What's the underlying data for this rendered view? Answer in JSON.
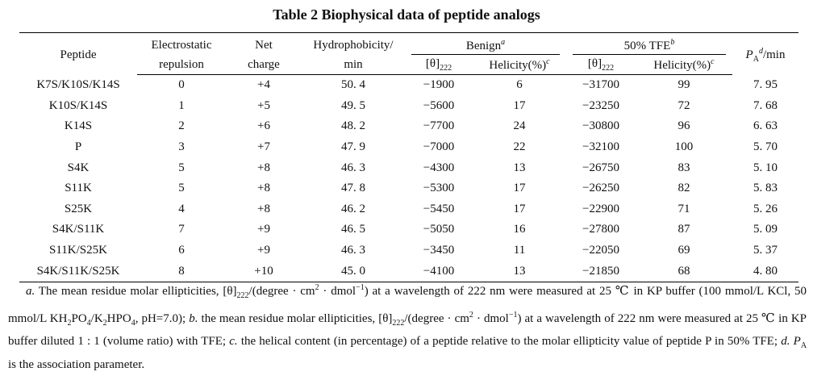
{
  "title": "Table 2   Biophysical data of peptide analogs",
  "headers": {
    "peptide": "Peptide",
    "electrostatic_1": "Electrostatic",
    "electrostatic_2": "repulsion",
    "net_1": "Net",
    "net_2": "charge",
    "hydro_1": "Hydrophobicity/",
    "hydro_2": "min",
    "benign": "Benign",
    "benign_sup": "a",
    "tfe": "50% TFE",
    "tfe_sup": "b",
    "theta1": "[θ]",
    "theta1_sub": "222",
    "helicity1": "Helicity(%)",
    "helicity1_sup": "c",
    "theta2": "[θ]",
    "theta2_sub": "222",
    "helicity2": "Helicity(%)",
    "helicity2_sup": "c",
    "pa": "P",
    "pa_sub": "A",
    "pa_sup": "d",
    "pa_unit": "/min"
  },
  "rows": [
    {
      "peptide": "K7S/K10S/K14S",
      "er": "0",
      "charge": "+4",
      "hydro": "50. 4",
      "b_theta": "−1900",
      "b_hel": "6",
      "t_theta": "−31700",
      "t_hel": "99",
      "pa": "7. 95"
    },
    {
      "peptide": "K10S/K14S",
      "er": "1",
      "charge": "+5",
      "hydro": "49. 5",
      "b_theta": "−5600",
      "b_hel": "17",
      "t_theta": "−23250",
      "t_hel": "72",
      "pa": "7. 68"
    },
    {
      "peptide": "K14S",
      "er": "2",
      "charge": "+6",
      "hydro": "48. 2",
      "b_theta": "−7700",
      "b_hel": "24",
      "t_theta": "−30800",
      "t_hel": "96",
      "pa": "6. 63"
    },
    {
      "peptide": "P",
      "er": "3",
      "charge": "+7",
      "hydro": "47. 9",
      "b_theta": "−7000",
      "b_hel": "22",
      "t_theta": "−32100",
      "t_hel": "100",
      "pa": "5. 70"
    },
    {
      "peptide": "S4K",
      "er": "5",
      "charge": "+8",
      "hydro": "46. 3",
      "b_theta": "−4300",
      "b_hel": "13",
      "t_theta": "−26750",
      "t_hel": "83",
      "pa": "5. 10"
    },
    {
      "peptide": "S11K",
      "er": "5",
      "charge": "+8",
      "hydro": "47. 8",
      "b_theta": "−5300",
      "b_hel": "17",
      "t_theta": "−26250",
      "t_hel": "82",
      "pa": "5. 83"
    },
    {
      "peptide": "S25K",
      "er": "4",
      "charge": "+8",
      "hydro": "46. 2",
      "b_theta": "−5450",
      "b_hel": "17",
      "t_theta": "−22900",
      "t_hel": "71",
      "pa": "5. 26"
    },
    {
      "peptide": "S4K/S11K",
      "er": "7",
      "charge": "+9",
      "hydro": "46. 5",
      "b_theta": "−5050",
      "b_hel": "16",
      "t_theta": "−27800",
      "t_hel": "87",
      "pa": "5. 09"
    },
    {
      "peptide": "S11K/S25K",
      "er": "6",
      "charge": "+9",
      "hydro": "46. 3",
      "b_theta": "−3450",
      "b_hel": "11",
      "t_theta": "−22050",
      "t_hel": "69",
      "pa": "5. 37"
    },
    {
      "peptide": "S4K/S11K/S25K",
      "er": "8",
      "charge": "+10",
      "hydro": "45. 0",
      "b_theta": "−4100",
      "b_hel": "13",
      "t_theta": "−21850",
      "t_hel": "68",
      "pa": "4. 80"
    }
  ],
  "notes": {
    "a_label": "a.",
    "a_text_1": "The mean residue molar ellipticities, [θ]",
    "a_sub": "222",
    "a_text_2": "/(degree · cm",
    "a_sup1": "2",
    "a_text_3": " · dmol",
    "a_sup2": "−1",
    "a_text_4": ") at a wavelength of 222 nm were measured at 25 ℃ in KP buffer (100 mmol/L KCl, 50 mmol/L KH",
    "a_s2": "2",
    "a_t5": "PO",
    "a_s4": "4",
    "a_t6": "/K",
    "a_s2b": "2",
    "a_t7": "HPO",
    "a_s4b": "4",
    "a_t8": ", pH=7.0);",
    "b_label": "b.",
    "b_text_1": "the mean residue molar ellipticities, [θ]",
    "b_sub": "222",
    "b_text_2": "/(degree · cm",
    "b_sup1": "2",
    "b_text_3": " · dmol",
    "b_sup2": "−1",
    "b_text_4": ") at a wavelength of 222 nm were measured at 25 ℃ in KP buffer diluted 1 : 1 (volume ratio) with TFE;",
    "c_label": "c.",
    "c_text": "the helical content (in percentage) of a peptide relative to the molar ellipticity value of peptide P in 50% TFE;",
    "d_label": "d.",
    "d_p": "P",
    "d_sub": "A",
    "d_text": " is the association parameter."
  }
}
